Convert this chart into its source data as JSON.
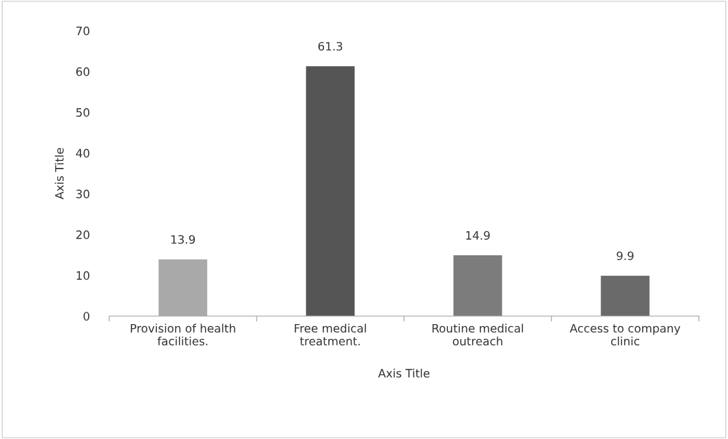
{
  "chart_data": {
    "type": "bar",
    "categories": [
      "Provision of health\nfacilities.",
      "Free medical\ntreatment.",
      "Routine medical\noutreach",
      "Access to company\nclinic"
    ],
    "values": [
      13.9,
      61.3,
      14.9,
      9.9
    ],
    "colors": [
      "#a9a9a9",
      "#555555",
      "#7c7c7c",
      "#6a6a6a"
    ],
    "xlabel": "Axis Title",
    "ylabel": "Axis Title",
    "ylim": [
      0,
      70
    ],
    "yticks": [
      0,
      10,
      20,
      30,
      40,
      50,
      60,
      70
    ],
    "data_labels": true,
    "grid": false,
    "legend": false
  }
}
